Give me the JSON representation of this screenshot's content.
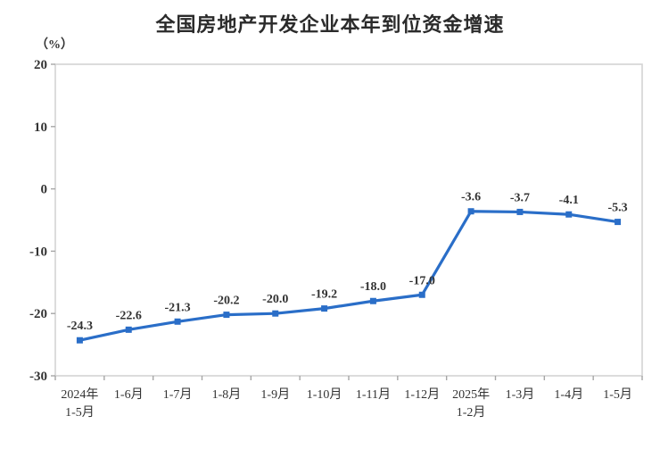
{
  "title": "全国房地产开发企业本年到位资金增速",
  "unit_label": "（%）",
  "chart_data": {
    "type": "line",
    "title": "全国房地产开发企业本年到位资金增速",
    "ylabel": "（%）",
    "categories": [
      "2024年\n1-5月",
      "1-6月",
      "1-7月",
      "1-8月",
      "1-9月",
      "1-10月",
      "1-11月",
      "1-12月",
      "2025年\n1-2月",
      "1-3月",
      "1-4月",
      "1-5月"
    ],
    "values": [
      -24.3,
      -22.6,
      -21.3,
      -20.2,
      -20.0,
      -19.2,
      -18.0,
      -17.0,
      -3.6,
      -3.7,
      -4.1,
      -5.3
    ],
    "data_labels": [
      "-24.3",
      "-22.6",
      "-21.3",
      "-20.2",
      "-20.0",
      "-19.2",
      "-18.0",
      "-17.0",
      "-3.6",
      "-3.7",
      "-4.1",
      "-5.3"
    ],
    "ylim": [
      -30,
      20
    ],
    "yticks": [
      20,
      10,
      0,
      -10,
      -20,
      -30
    ],
    "grid": false,
    "legend_position": "none",
    "marker": "square"
  },
  "colors": {
    "line": "#2a6ec8",
    "marker": "#2a6ec8",
    "text": "#333333",
    "title_text": "#2b2b2b",
    "plot_border": "#d4d4d4",
    "tick": "#a6a6a6",
    "background": "#ffffff"
  }
}
